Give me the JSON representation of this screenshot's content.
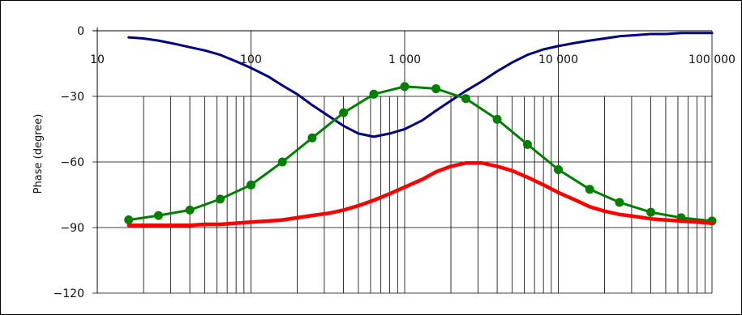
{
  "chart_data": {
    "type": "line",
    "title": "",
    "xlabel": "",
    "ylabel": "Phase (degree)",
    "xscale": "log",
    "xlim": [
      10,
      100000
    ],
    "ylim": [
      -120,
      0
    ],
    "x_tick_values": [
      10,
      100,
      1000,
      10000,
      100000
    ],
    "x_tick_labels": [
      "10",
      "100",
      "1 000",
      "10 000",
      "100 000"
    ],
    "y_tick_values": [
      0,
      -30,
      -60,
      -90,
      -120
    ],
    "y_tick_labels": [
      "0",
      "−30",
      "−60",
      "−90",
      "−120"
    ],
    "grid": "x minor (log decades), y major",
    "legend": "none",
    "series": [
      {
        "color": "#000080",
        "marker": "none",
        "x": [
          16,
          20,
          25,
          32,
          40,
          50,
          63,
          80,
          100,
          130,
          160,
          200,
          250,
          320,
          400,
          500,
          630,
          800,
          1000,
          1300,
          1600,
          2000,
          2500,
          3200,
          4000,
          5000,
          6300,
          8000,
          10000,
          13000,
          16000,
          20000,
          25000,
          32000,
          40000,
          50000,
          63000,
          80000,
          100000
        ],
        "y": [
          -3,
          -3.5,
          -4.5,
          -6,
          -7.5,
          -9,
          -11,
          -14,
          -17,
          -21,
          -25,
          -29,
          -34,
          -39,
          -43.5,
          -47,
          -48.5,
          -47,
          -45,
          -41,
          -36.5,
          -32,
          -27.5,
          -23,
          -18.5,
          -14.5,
          -11,
          -8.5,
          -7,
          -5.5,
          -4.5,
          -3.5,
          -2.5,
          -2,
          -1.5,
          -1.5,
          -1,
          -1,
          -1
        ]
      },
      {
        "color": "#008000",
        "marker": "circle",
        "x": [
          16,
          25,
          40,
          63,
          100,
          160,
          250,
          400,
          630,
          1000,
          1600,
          2500,
          4000,
          6300,
          10000,
          16000,
          25000,
          40000,
          63000,
          100000
        ],
        "y": [
          -86.5,
          -84.5,
          -82,
          -77,
          -70.5,
          -60,
          -49,
          -37.5,
          -29,
          -25.5,
          -26.5,
          -31,
          -40.5,
          -52,
          -63.5,
          -72.5,
          -78.5,
          -83,
          -85.5,
          -87
        ]
      },
      {
        "color": "#ff0000",
        "marker": "none",
        "x": [
          16,
          20,
          25,
          32,
          40,
          50,
          63,
          80,
          100,
          130,
          160,
          200,
          250,
          320,
          400,
          500,
          630,
          800,
          1000,
          1300,
          1600,
          2000,
          2500,
          3200,
          4000,
          5000,
          6300,
          8000,
          10000,
          13000,
          16000,
          20000,
          25000,
          32000,
          40000,
          50000,
          63000,
          80000,
          100000
        ],
        "y": [
          -89,
          -89,
          -89,
          -89,
          -89,
          -88.5,
          -88.5,
          -88,
          -87.5,
          -87,
          -86.5,
          -85.5,
          -84.5,
          -83.5,
          -82,
          -80,
          -77.5,
          -74.5,
          -71.5,
          -68,
          -64.5,
          -62,
          -60.5,
          -60.5,
          -62,
          -64,
          -67,
          -70.5,
          -74,
          -77.5,
          -80.5,
          -82.5,
          -84,
          -85,
          -86,
          -86.5,
          -87,
          -87.5,
          -88
        ]
      }
    ]
  }
}
